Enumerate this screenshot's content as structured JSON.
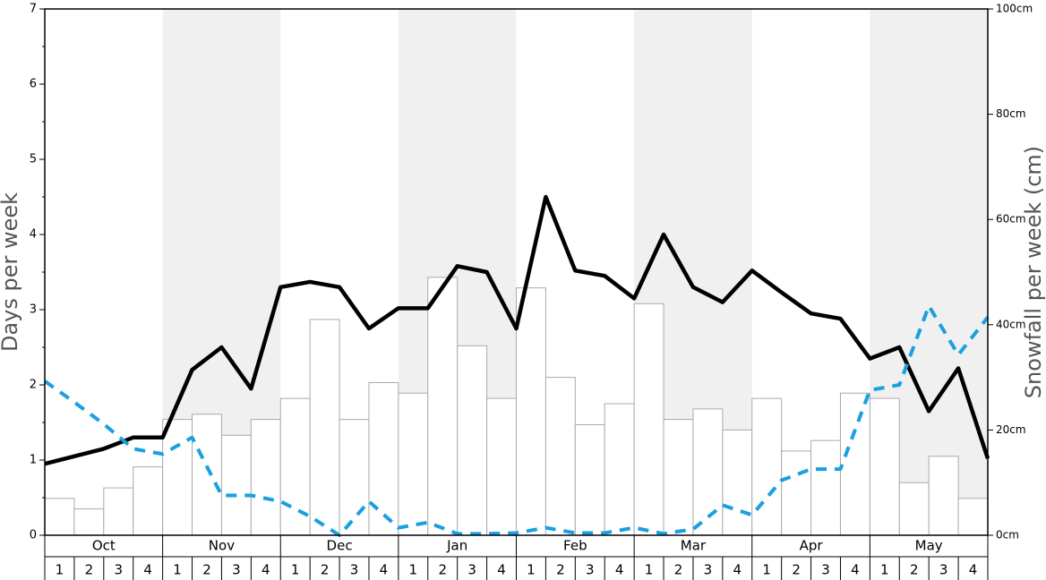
{
  "chart_data": {
    "type": "bar",
    "ylabel": "Days per week",
    "y2label": "Snowfall per week (cm)",
    "months": [
      "Oct",
      "Nov",
      "Dec",
      "Jan",
      "Feb",
      "Mar",
      "Apr",
      "May"
    ],
    "weeks": [
      1,
      2,
      3,
      4
    ],
    "shaded_months": [
      1,
      3,
      5,
      7
    ],
    "ylim": [
      0,
      7
    ],
    "yticks": [
      0,
      1,
      2,
      3,
      4,
      5,
      6,
      7
    ],
    "yticks_minor": [
      0.5,
      1.5,
      2.5,
      3.5,
      4.5,
      5.5,
      6.5
    ],
    "y2lim": [
      0,
      100
    ],
    "y2ticks": [
      {
        "value": 0,
        "label": "0cm"
      },
      {
        "value": 20,
        "label": "20cm"
      },
      {
        "value": 40,
        "label": "40cm"
      },
      {
        "value": 60,
        "label": "60cm"
      },
      {
        "value": 80,
        "label": "80cm"
      },
      {
        "value": 100,
        "label": "100cm"
      }
    ],
    "series": [
      {
        "type": "bar",
        "axis": "y2",
        "color": "#ffffff",
        "stroke": "#aaaaaa",
        "values": [
          7,
          5,
          9,
          13,
          22,
          23,
          19,
          22,
          26,
          41,
          22,
          29,
          27,
          49,
          36,
          26,
          47,
          30,
          21,
          25,
          44,
          22,
          24,
          20,
          26,
          16,
          18,
          27,
          26,
          10,
          15,
          7
        ]
      },
      {
        "type": "line",
        "color": "#000000",
        "dashed": false,
        "values": [
          0.95,
          1.05,
          1.15,
          1.3,
          1.3,
          2.2,
          2.5,
          1.95,
          3.3,
          3.37,
          3.3,
          2.75,
          3.02,
          3.02,
          3.58,
          3.5,
          2.75,
          4.5,
          3.52,
          3.45,
          3.15,
          4.0,
          3.3,
          3.1,
          3.52,
          3.23,
          2.95,
          2.88,
          2.35,
          2.5,
          1.65,
          2.22,
          1.02
        ]
      },
      {
        "type": "line",
        "color": "#1a9fe0",
        "dashed": true,
        "values": [
          2.05,
          1.77,
          1.48,
          1.15,
          1.08,
          1.3,
          0.53,
          0.53,
          0.45,
          0.25,
          0.0,
          0.45,
          0.1,
          0.17,
          0.02,
          0.02,
          0.03,
          0.1,
          0.03,
          0.03,
          0.1,
          0.02,
          0.08,
          0.4,
          0.27,
          0.73,
          0.88,
          0.88,
          1.93,
          2.0,
          3.05,
          2.4,
          2.9
        ]
      }
    ]
  }
}
